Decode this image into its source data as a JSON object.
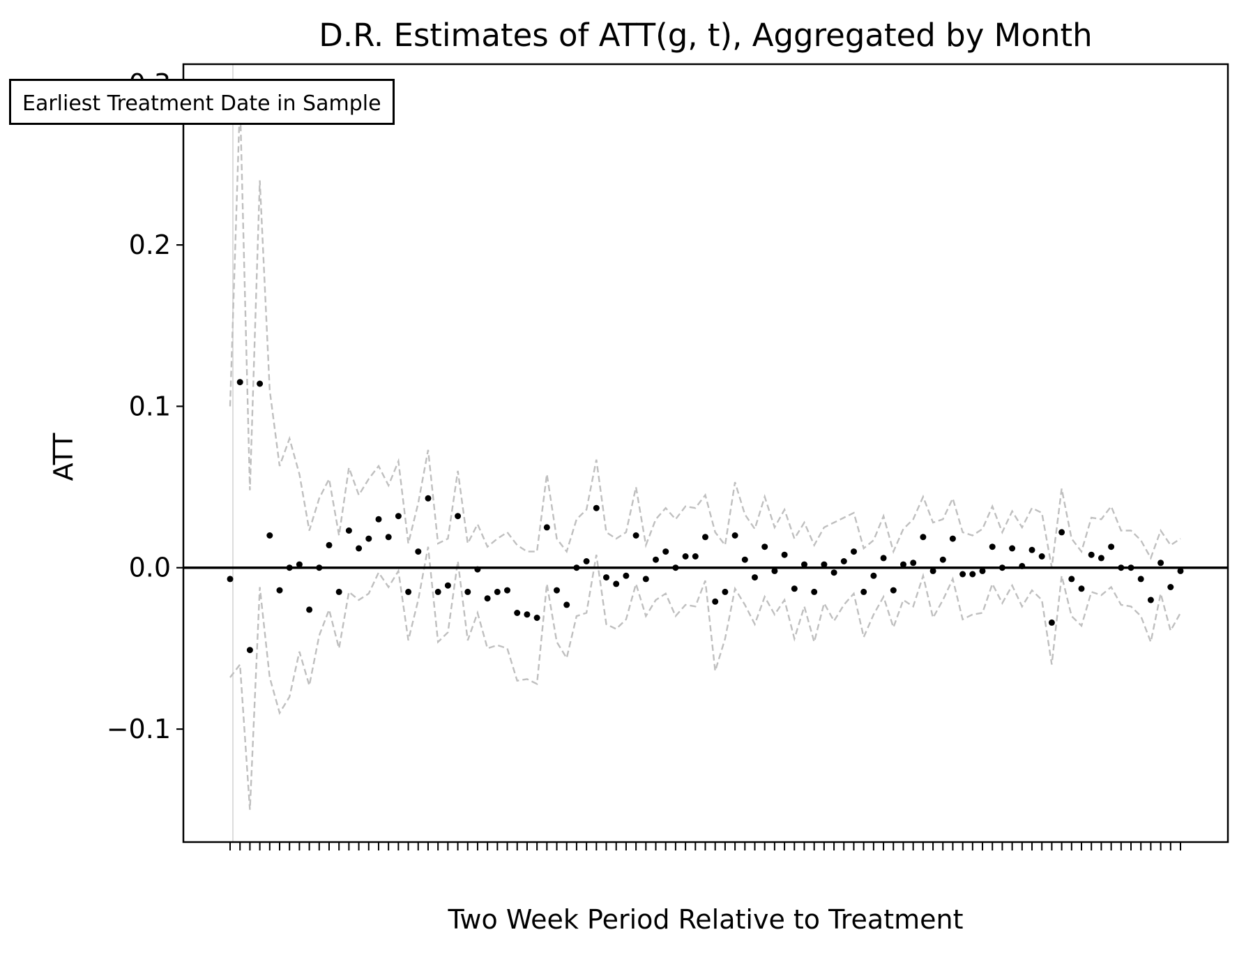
{
  "chart_data": {
    "type": "scatter",
    "title": "D.R. Estimates of ATT(g, t), Aggregated by Month",
    "xlabel": "Two Week Period Relative to Treatment",
    "ylabel": "ATT",
    "ylim": [
      -0.17,
      0.312
    ],
    "y_ticks": [
      {
        "value": -0.1,
        "label": "−0.1"
      },
      {
        "value": 0.0,
        "label": "0.0"
      },
      {
        "value": 0.1,
        "label": "0.1"
      },
      {
        "value": 0.2,
        "label": "0.2"
      },
      {
        "value": 0.3,
        "label": "0.3"
      }
    ],
    "x_tick_labels": "overlapping and illegible",
    "annotation": "Earliest Treatment Date in Sample",
    "colors": {
      "points": "#000000",
      "ci_lines": "#bfbfbf",
      "zero_line": "#000000",
      "treatment_line": "#dddddd"
    },
    "series": [
      {
        "role": "point_estimate",
        "style": "dots",
        "values": [
          -0.007,
          0.115,
          -0.051,
          0.114,
          0.02,
          -0.014,
          0.0,
          0.002,
          -0.026,
          0.0,
          0.014,
          -0.015,
          0.023,
          0.012,
          0.018,
          0.03,
          0.019,
          0.032,
          -0.015,
          0.01,
          0.043,
          -0.015,
          -0.011,
          0.032,
          -0.015,
          -0.001,
          -0.019,
          -0.015,
          -0.014,
          -0.028,
          -0.029,
          -0.031,
          0.025,
          -0.014,
          -0.023,
          0.0,
          0.004,
          0.037,
          -0.006,
          -0.01,
          -0.005,
          0.02,
          -0.007,
          0.005,
          0.01,
          0.0,
          0.007,
          0.007,
          0.019,
          -0.021,
          -0.015,
          0.02,
          0.005,
          -0.006,
          0.013,
          -0.002,
          0.008,
          -0.013,
          0.002,
          -0.015,
          0.002,
          -0.003,
          0.004,
          0.01,
          -0.015,
          -0.005,
          0.006,
          -0.014,
          0.002,
          0.003,
          0.019,
          -0.002,
          0.005,
          0.018,
          -0.004,
          -0.004,
          -0.002,
          0.013,
          0.0,
          0.012,
          0.001,
          0.011,
          0.007,
          -0.034,
          0.022,
          -0.007,
          -0.013,
          0.008,
          0.006,
          0.013,
          0.0,
          0.0,
          -0.007,
          -0.02,
          0.003,
          -0.012,
          -0.002
        ]
      },
      {
        "role": "ci_upper",
        "style": "dashed",
        "values": [
          0.1,
          0.29,
          0.048,
          0.24,
          0.11,
          0.063,
          0.08,
          0.058,
          0.023,
          0.043,
          0.055,
          0.02,
          0.062,
          0.045,
          0.055,
          0.063,
          0.051,
          0.066,
          0.015,
          0.04,
          0.073,
          0.015,
          0.018,
          0.06,
          0.015,
          0.027,
          0.013,
          0.018,
          0.022,
          0.014,
          0.01,
          0.01,
          0.058,
          0.018,
          0.01,
          0.03,
          0.036,
          0.067,
          0.022,
          0.018,
          0.022,
          0.05,
          0.014,
          0.03,
          0.037,
          0.03,
          0.038,
          0.037,
          0.045,
          0.022,
          0.014,
          0.053,
          0.033,
          0.024,
          0.044,
          0.025,
          0.036,
          0.018,
          0.028,
          0.014,
          0.025,
          0.028,
          0.031,
          0.034,
          0.012,
          0.017,
          0.032,
          0.01,
          0.024,
          0.03,
          0.044,
          0.028,
          0.03,
          0.043,
          0.022,
          0.02,
          0.024,
          0.038,
          0.022,
          0.035,
          0.025,
          0.037,
          0.034,
          0.0,
          0.049,
          0.018,
          0.01,
          0.031,
          0.03,
          0.038,
          0.023,
          0.023,
          0.017,
          0.006,
          0.023,
          0.014,
          0.018
        ]
      },
      {
        "role": "ci_lower",
        "style": "dashed",
        "values": [
          -0.068,
          -0.06,
          -0.15,
          -0.012,
          -0.068,
          -0.09,
          -0.08,
          -0.052,
          -0.073,
          -0.042,
          -0.026,
          -0.05,
          -0.015,
          -0.02,
          -0.016,
          -0.003,
          -0.012,
          -0.002,
          -0.045,
          -0.02,
          0.013,
          -0.046,
          -0.04,
          0.004,
          -0.045,
          -0.028,
          -0.05,
          -0.048,
          -0.05,
          -0.07,
          -0.069,
          -0.072,
          -0.01,
          -0.046,
          -0.056,
          -0.03,
          -0.028,
          0.008,
          -0.035,
          -0.038,
          -0.032,
          -0.01,
          -0.03,
          -0.02,
          -0.016,
          -0.03,
          -0.023,
          -0.024,
          -0.008,
          -0.064,
          -0.044,
          -0.013,
          -0.023,
          -0.035,
          -0.018,
          -0.029,
          -0.02,
          -0.044,
          -0.024,
          -0.046,
          -0.022,
          -0.033,
          -0.023,
          -0.016,
          -0.043,
          -0.029,
          -0.018,
          -0.037,
          -0.02,
          -0.024,
          -0.005,
          -0.031,
          -0.02,
          -0.007,
          -0.032,
          -0.029,
          -0.028,
          -0.01,
          -0.022,
          -0.011,
          -0.024,
          -0.014,
          -0.02,
          -0.06,
          -0.005,
          -0.03,
          -0.036,
          -0.015,
          -0.017,
          -0.012,
          -0.023,
          -0.024,
          -0.03,
          -0.046,
          -0.016,
          -0.039,
          -0.028
        ]
      }
    ]
  }
}
